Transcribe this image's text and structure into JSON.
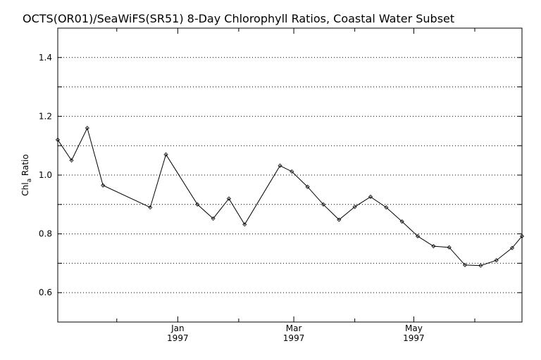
{
  "chart_data": {
    "type": "line",
    "title": "OCTS(OR01)/SeaWiFS(SR51) 8-Day Chlorophyll Ratios, Coastal Water Subset",
    "ylabel": {
      "main": "Chl",
      "sub": "a",
      "rest": " Ratio"
    },
    "xlabel": "",
    "ylim": [
      0.5,
      1.5
    ],
    "y_ticks": [
      0.6,
      0.8,
      1.0,
      1.2,
      1.4
    ],
    "y_tick_labels": [
      "0.6",
      "0.8",
      "1.0",
      "1.2",
      "1.4"
    ],
    "y_gridlines": [
      0.6,
      0.7,
      0.8,
      0.9,
      1.0,
      1.1,
      1.2,
      1.3,
      1.4
    ],
    "grid": "horizontal dotted",
    "x_start": "1996-11-01",
    "x_end": "1997-06-25",
    "x_ticks": [
      {
        "date": "1997-01-01",
        "month": "Jan",
        "year": "1997"
      },
      {
        "date": "1997-03-01",
        "month": "Mar",
        "year": "1997"
      },
      {
        "date": "1997-05-01",
        "month": "May",
        "year": "1997"
      }
    ],
    "x_minor_ticks": [
      "1996-12-01",
      "1997-02-01",
      "1997-04-01",
      "1997-06-01"
    ],
    "series": [
      {
        "marker": "diamond",
        "points": [
          {
            "x": "1996-11-01",
            "y": 1.12
          },
          {
            "x": "1996-11-08",
            "y": 1.05
          },
          {
            "x": "1996-11-16",
            "y": 1.16
          },
          {
            "x": "1996-11-24",
            "y": 0.965
          },
          {
            "x": "1996-12-18",
            "y": 0.89
          },
          {
            "x": "1996-12-26",
            "y": 1.07
          },
          {
            "x": "1997-01-11",
            "y": 0.9
          },
          {
            "x": "1997-01-19",
            "y": 0.852
          },
          {
            "x": "1997-01-27",
            "y": 0.92
          },
          {
            "x": "1997-02-04",
            "y": 0.832
          },
          {
            "x": "1997-02-22",
            "y": 1.032
          },
          {
            "x": "1997-02-28",
            "y": 1.012
          },
          {
            "x": "1997-03-08",
            "y": 0.96
          },
          {
            "x": "1997-03-16",
            "y": 0.9
          },
          {
            "x": "1997-03-24",
            "y": 0.848
          },
          {
            "x": "1997-04-01",
            "y": 0.892
          },
          {
            "x": "1997-04-09",
            "y": 0.926
          },
          {
            "x": "1997-04-17",
            "y": 0.89
          },
          {
            "x": "1997-04-25",
            "y": 0.842
          },
          {
            "x": "1997-05-03",
            "y": 0.792
          },
          {
            "x": "1997-05-11",
            "y": 0.758
          },
          {
            "x": "1997-05-19",
            "y": 0.754
          },
          {
            "x": "1997-05-27",
            "y": 0.694
          },
          {
            "x": "1997-06-04",
            "y": 0.692
          },
          {
            "x": "1997-06-12",
            "y": 0.71
          },
          {
            "x": "1997-06-20",
            "y": 0.752
          },
          {
            "x": "1997-06-25",
            "y": 0.792
          }
        ]
      }
    ]
  }
}
